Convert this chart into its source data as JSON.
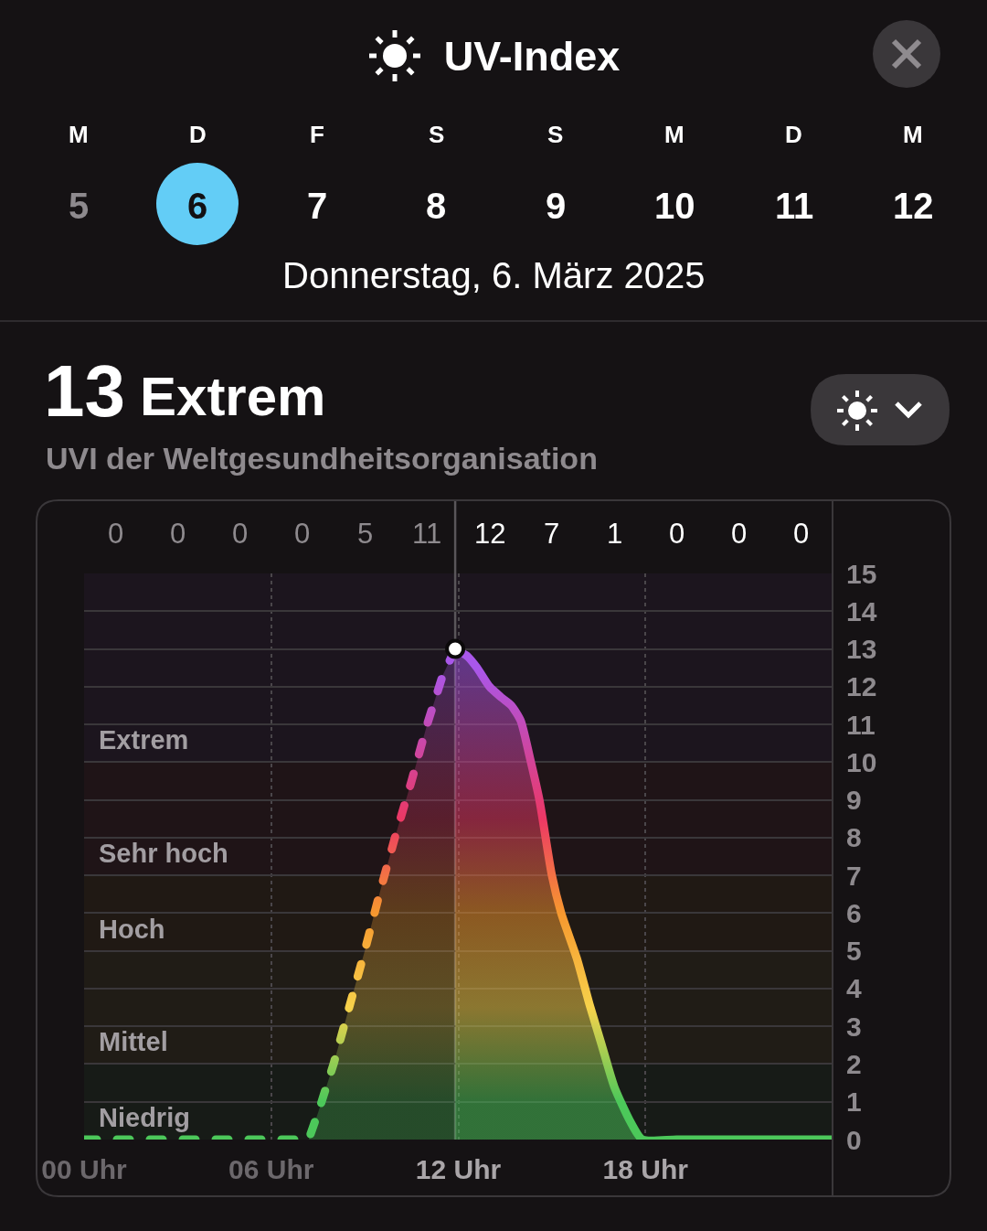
{
  "chart_data": {
    "type": "area",
    "title": "UV-Index",
    "subtitle": "UVI der Weltgesundheitsorganisation",
    "annotations": [
      "M",
      "D",
      "F",
      "S",
      "S",
      "M",
      "D",
      "M",
      "5",
      "6",
      "7",
      "8",
      "9",
      "10",
      "11",
      "12",
      "Donnerstag, 6. März 2025",
      "13",
      "Extrem",
      "0",
      "0",
      "0",
      "0",
      "5",
      "11",
      "12",
      "7",
      "1",
      "0",
      "0",
      "0"
    ],
    "xlim": [
      0,
      24
    ],
    "xticks": [
      {
        "value": 0,
        "label": "00 Uhr"
      },
      {
        "value": 6,
        "label": "06 Uhr"
      },
      {
        "value": 12,
        "label": "12 Uhr"
      },
      {
        "value": 18,
        "label": "18 Uhr"
      }
    ],
    "ylim": [
      0,
      15
    ],
    "yticks": [
      0,
      1,
      2,
      3,
      4,
      5,
      6,
      7,
      8,
      9,
      10,
      11,
      12,
      13,
      14,
      15
    ],
    "grid": true,
    "bands": [
      {
        "axis": "y",
        "from": 0,
        "to": 2,
        "label": "Niedrig",
        "color": "#4cc85a"
      },
      {
        "axis": "y",
        "from": 2,
        "to": 5,
        "label": "Mittel",
        "color": "#f7d24b"
      },
      {
        "axis": "y",
        "from": 5,
        "to": 7,
        "label": "Hoch",
        "color": "#f7982f"
      },
      {
        "axis": "y",
        "from": 7,
        "to": 10,
        "label": "Sehr hoch",
        "color": "#ec3865"
      },
      {
        "axis": "y",
        "from": 10,
        "to": 15,
        "label": "Extrem",
        "color": "#a957ea"
      }
    ],
    "ref_lines": [
      {
        "axis": "x",
        "value": 11.9,
        "color": "#5a565a"
      }
    ],
    "series": [
      {
        "line_style": "dashed",
        "x": [
          0,
          1,
          3,
          5,
          7,
          7.2,
          7.5,
          8,
          8.5,
          9,
          9.5,
          10,
          10.5,
          11,
          11.5,
          11.9
        ],
        "values": [
          0,
          0,
          0,
          0,
          0,
          0,
          0.7,
          2,
          3.5,
          5,
          6.6,
          8.1,
          9.5,
          11,
          12.3,
          13
        ]
      },
      {
        "line_style": "solid",
        "x": [
          11.9,
          12.3,
          12.6,
          13,
          13.4,
          13.7,
          14,
          14.3,
          14.6,
          15,
          15.3,
          15.8,
          16.2,
          16.6,
          17,
          17.5,
          17.9,
          19,
          21,
          23,
          24
        ],
        "values": [
          13,
          12.8,
          12.5,
          12,
          11.7,
          11.5,
          11.1,
          10.1,
          9,
          7,
          6,
          4.8,
          3.6,
          2.5,
          1.4,
          0.5,
          0,
          0,
          0,
          0,
          0
        ]
      },
      {
        "type": "scatter",
        "marker": "circle",
        "color": "#ffffff",
        "x": [
          11.9
        ],
        "values": [
          13
        ]
      }
    ]
  }
}
